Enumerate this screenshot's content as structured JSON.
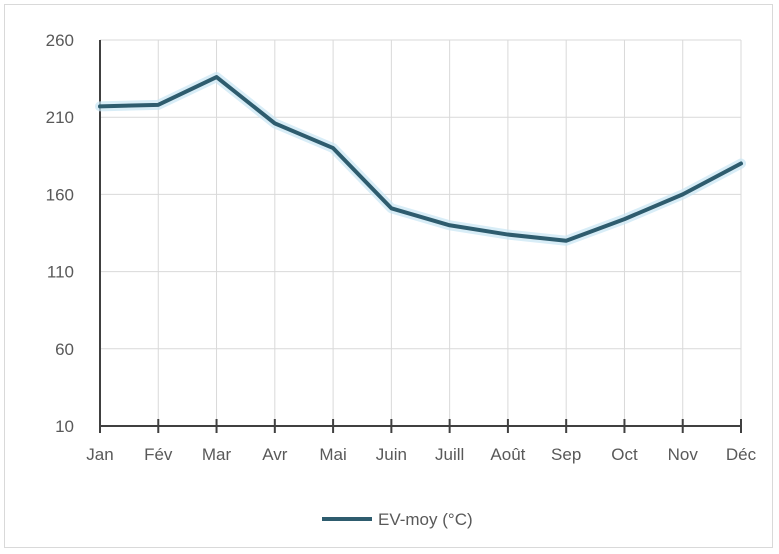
{
  "chart_data": {
    "type": "line",
    "categories": [
      "Jan",
      "Fév",
      "Mar",
      "Avr",
      "Mai",
      "Juin",
      "Juill",
      "Août",
      "Sep",
      "Oct",
      "Nov",
      "Déc"
    ],
    "series": [
      {
        "name": "EV-moy (°C)",
        "values": [
          217,
          218,
          236,
          206,
          190,
          151,
          140,
          134,
          130,
          144,
          160,
          180
        ],
        "color": "#2e5c6e"
      }
    ],
    "ylim": [
      10,
      260
    ],
    "yticks": [
      10,
      60,
      110,
      160,
      210,
      260
    ],
    "grid": true,
    "legend": "bottom"
  }
}
